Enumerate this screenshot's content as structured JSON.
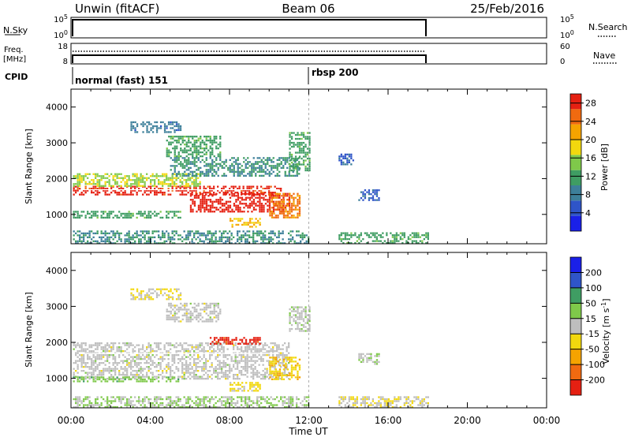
{
  "header": {
    "station": "Unwin (fitACF)",
    "beam": "Beam 06",
    "date": "25/Feb/2016"
  },
  "strips": {
    "nsky": {
      "label": "N.Sky",
      "left_ticks": [
        "10^5",
        "10^0"
      ],
      "right_ticks": [
        "10^5",
        "10^0"
      ],
      "right_label": "N.Search"
    },
    "freq": {
      "label_top": "Freq.",
      "label_unit": "[MHz]",
      "left_ticks": [
        "18",
        "8"
      ],
      "right_ticks": [
        "60",
        "0"
      ],
      "right_label": "Nave"
    },
    "cpid": {
      "label": "CPID",
      "modes": [
        "normal (fast) 151",
        "rbsp 200"
      ]
    }
  },
  "axes": {
    "xlabel": "Time UT",
    "x_ticks": [
      "00:00",
      "04:00",
      "08:00",
      "12:00",
      "16:00",
      "20:00",
      "00:00"
    ],
    "ylabel": "Slant Range [km]",
    "y_ticks": [
      "1000",
      "2000",
      "3000",
      "4000"
    ]
  },
  "colors": {
    "power_scale": [
      "#1a20e8",
      "#2f55c8",
      "#3d7f9a",
      "#3f9d63",
      "#7fc94a",
      "#f2d80e",
      "#f5a300",
      "#f06a10",
      "#e52012"
    ],
    "velocity_scale": [
      "#e52012",
      "#f06a10",
      "#f5a300",
      "#f2d80e",
      "#bebebe",
      "#7fc94a",
      "#3f9d63",
      "#2f55c8",
      "#1a20e8"
    ]
  },
  "chart_data": [
    {
      "type": "heatmap",
      "title": "Power",
      "xlabel": "",
      "ylabel": "Slant Range [km]",
      "xlim_hours": [
        0,
        24
      ],
      "ylim_km": [
        180,
        4500
      ],
      "colorbar": {
        "label": "Power [dB]",
        "ticks": [
          "4",
          "8",
          "12",
          "16",
          "20",
          "24",
          "28"
        ],
        "range": [
          0,
          30
        ]
      },
      "regions": [
        {
          "t": [
            0.1,
            10.6
          ],
          "r": [
            1550,
            1800
          ],
          "v": 28
        },
        {
          "t": [
            6.0,
            11.0
          ],
          "r": [
            1100,
            1600
          ],
          "v": 29
        },
        {
          "t": [
            8.0,
            9.5
          ],
          "r": [
            650,
            900
          ],
          "v": 20
        },
        {
          "t": [
            10.0,
            11.5
          ],
          "r": [
            900,
            1600
          ],
          "v": 24
        },
        {
          "t": [
            0.1,
            6.5
          ],
          "r": [
            1800,
            2150
          ],
          "v": 16
        },
        {
          "t": [
            0.1,
            5.5
          ],
          "r": [
            900,
            1100
          ],
          "v": 12
        },
        {
          "t": [
            3.0,
            5.5
          ],
          "r": [
            3300,
            3600
          ],
          "v": 8
        },
        {
          "t": [
            4.8,
            7.5
          ],
          "r": [
            2600,
            3200
          ],
          "v": 12
        },
        {
          "t": [
            5.0,
            11.5
          ],
          "r": [
            2100,
            2600
          ],
          "v": 10
        },
        {
          "t": [
            11.0,
            12.0
          ],
          "r": [
            2200,
            3300
          ],
          "v": 12
        },
        {
          "t": [
            13.5,
            14.2
          ],
          "r": [
            2400,
            2700
          ],
          "v": 6
        },
        {
          "t": [
            14.5,
            15.5
          ],
          "r": [
            1400,
            1700
          ],
          "v": 6
        },
        {
          "t": [
            0.1,
            12.0
          ],
          "r": [
            180,
            550
          ],
          "v": 10
        },
        {
          "t": [
            13.5,
            18.0
          ],
          "r": [
            180,
            500
          ],
          "v": 12
        }
      ]
    },
    {
      "type": "heatmap",
      "title": "Velocity",
      "xlabel": "Time UT",
      "ylabel": "Slant Range [km]",
      "xlim_hours": [
        0,
        24
      ],
      "ylim_km": [
        180,
        4500
      ],
      "colorbar": {
        "label": "Velocity [m s^-1]",
        "ticks": [
          "-200",
          "-100",
          "-50",
          "-15",
          "15",
          "50",
          "100",
          "200"
        ],
        "range": [
          -250,
          250
        ]
      },
      "regions": [
        {
          "t": [
            0.1,
            11.0
          ],
          "r": [
            1000,
            2000
          ],
          "v": 0
        },
        {
          "t": [
            7.0,
            9.5
          ],
          "r": [
            1950,
            2150
          ],
          "v": -220
        },
        {
          "t": [
            10.0,
            11.5
          ],
          "r": [
            950,
            1600
          ],
          "v": -70
        },
        {
          "t": [
            8.0,
            9.5
          ],
          "r": [
            650,
            900
          ],
          "v": -40
        },
        {
          "t": [
            0.1,
            5.5
          ],
          "r": [
            900,
            1050
          ],
          "v": 60
        },
        {
          "t": [
            3.0,
            5.5
          ],
          "r": [
            3200,
            3500
          ],
          "v": -30
        },
        {
          "t": [
            4.8,
            7.5
          ],
          "r": [
            2600,
            3100
          ],
          "v": 0
        },
        {
          "t": [
            11.0,
            12.0
          ],
          "r": [
            2300,
            3000
          ],
          "v": 10
        },
        {
          "t": [
            14.5,
            15.5
          ],
          "r": [
            1400,
            1700
          ],
          "v": 20
        },
        {
          "t": [
            0.1,
            12.0
          ],
          "r": [
            180,
            500
          ],
          "v": 30
        },
        {
          "t": [
            13.5,
            18.0
          ],
          "r": [
            180,
            500
          ],
          "v": -20
        }
      ]
    }
  ]
}
